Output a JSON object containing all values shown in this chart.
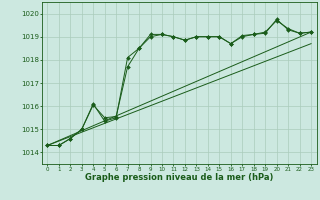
{
  "bg_color": "#cce8e0",
  "grid_color": "#aaccbb",
  "line_color": "#1a5c1a",
  "marker_color": "#1a5c1a",
  "xlabel": "Graphe pression niveau de la mer (hPa)",
  "xlabel_fontsize": 6.0,
  "ylim": [
    1013.5,
    1020.5
  ],
  "xlim": [
    -0.5,
    23.5
  ],
  "yticks": [
    1014,
    1015,
    1016,
    1017,
    1018,
    1019,
    1020
  ],
  "xticks": [
    0,
    1,
    2,
    3,
    4,
    5,
    6,
    7,
    8,
    9,
    10,
    11,
    12,
    13,
    14,
    15,
    16,
    17,
    18,
    19,
    20,
    21,
    22,
    23
  ],
  "series1_x": [
    0,
    1,
    2,
    3,
    4,
    5,
    6,
    7,
    8,
    9,
    10,
    11,
    12,
    13,
    14,
    15,
    16,
    17,
    18,
    19,
    20,
    21,
    22,
    23
  ],
  "series1_y": [
    1014.3,
    1014.3,
    1014.6,
    1015.0,
    1016.1,
    1015.35,
    1015.5,
    1018.1,
    1018.5,
    1019.1,
    1019.1,
    1019.0,
    1018.85,
    1019.0,
    1019.0,
    1019.0,
    1018.7,
    1019.0,
    1019.1,
    1019.15,
    1019.75,
    1019.3,
    1019.15,
    1019.2
  ],
  "series2_x": [
    0,
    1,
    2,
    3,
    4,
    5,
    6,
    7,
    8,
    9,
    10,
    11,
    12,
    13,
    14,
    15,
    16,
    17,
    18,
    19,
    20,
    21,
    22,
    23
  ],
  "series2_y": [
    1014.3,
    1014.3,
    1014.6,
    1015.0,
    1016.05,
    1015.5,
    1015.55,
    1017.7,
    1018.5,
    1019.0,
    1019.1,
    1019.0,
    1018.85,
    1019.0,
    1019.0,
    1019.0,
    1018.7,
    1019.05,
    1019.1,
    1019.2,
    1019.7,
    1019.35,
    1019.15,
    1019.2
  ],
  "line1_x": [
    0,
    23
  ],
  "line1_y": [
    1014.3,
    1019.2
  ],
  "line2_x": [
    0,
    23
  ],
  "line2_y": [
    1014.3,
    1018.7
  ]
}
